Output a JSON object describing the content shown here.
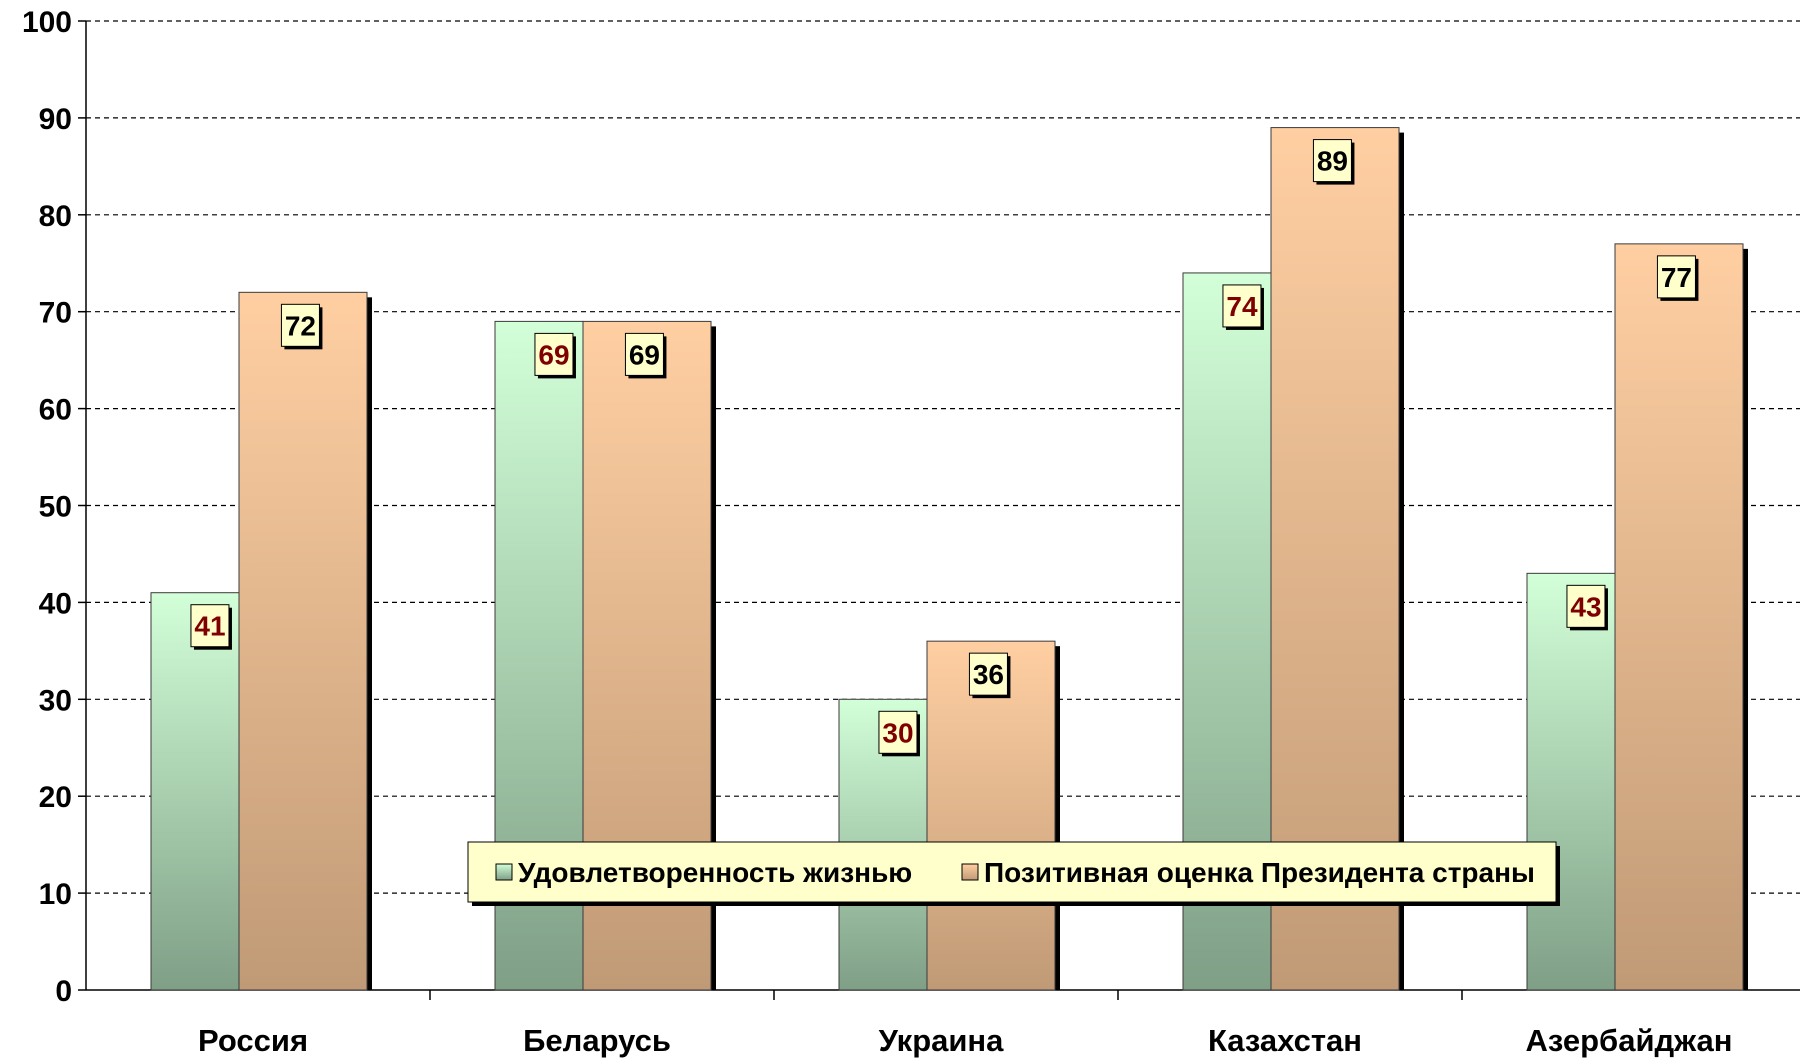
{
  "chart_data": {
    "type": "bar",
    "categories": [
      "Россия",
      "Беларусь",
      "Украина",
      "Казахстан",
      "Азербайджан"
    ],
    "series": [
      {
        "name": "Удовлетворенность жизнью",
        "values": [
          41,
          69,
          30,
          74,
          43
        ],
        "labels": [
          "41",
          "69",
          "30",
          "74",
          "43"
        ]
      },
      {
        "name": "Позитивная оценка Президента страны",
        "values": [
          72,
          69,
          36,
          89,
          77
        ],
        "labels": [
          "72",
          "69",
          "36",
          "89",
          "77"
        ]
      }
    ],
    "ylim": [
      0,
      100
    ],
    "yticks": [
      0,
      10,
      20,
      30,
      40,
      50,
      60,
      70,
      80,
      90,
      100
    ],
    "grid": true,
    "legend": "bottom-center",
    "colors": {
      "series1_top": "#d2ffd8",
      "series1_bottom": "#7f9f86",
      "series2_top": "#ffcfa2",
      "series2_bottom": "#c09a76",
      "label1_text": "#7f0000",
      "label2_text": "#000000",
      "label_bg": "#ffffcc",
      "legend_bg": "#ffffcc"
    }
  }
}
